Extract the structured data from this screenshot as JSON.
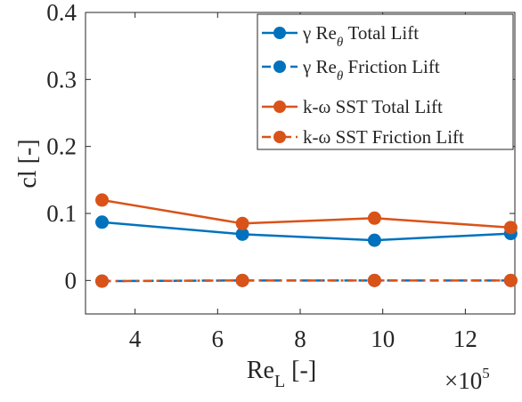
{
  "chart_data": {
    "type": "line",
    "title": "",
    "xlabel": "Re_L [-]",
    "xlabel_main": "Re",
    "xlabel_sub": "L",
    "xlabel_unit": "[-]",
    "ylabel": "cl [-]",
    "x_exponent_base": "×10",
    "x_exponent_power": "5",
    "xlim": [
      2.8,
      13.2
    ],
    "ylim": [
      -0.05,
      0.4
    ],
    "xticks": [
      4,
      6,
      8,
      10,
      12
    ],
    "xtick_labels": [
      "4",
      "6",
      "8",
      "10",
      "12"
    ],
    "yticks": [
      0,
      0.1,
      0.2,
      0.3,
      0.4
    ],
    "ytick_labels": [
      "0",
      "0.1",
      "0.2",
      "0.3",
      "0.4"
    ],
    "grid": false,
    "legend_position": "top-right",
    "x": [
      3.2,
      6.6,
      9.8,
      13.1
    ],
    "series": [
      {
        "name": "γ Re_θ Total Lift",
        "legend_prefix": "γ Re",
        "legend_sub": "θ",
        "legend_suffix": " Total Lift",
        "values": [
          0.087,
          0.069,
          0.06,
          0.07
        ],
        "color": "#0072BD",
        "dash": "solid"
      },
      {
        "name": "γ Re_θ Friction Lift",
        "legend_prefix": "γ Re",
        "legend_sub": "θ",
        "legend_suffix": " Friction Lift",
        "values": [
          -0.001,
          0.0,
          0.0,
          0.0
        ],
        "color": "#0072BD",
        "dash": "dashed"
      },
      {
        "name": "k-ω SST Total Lift",
        "legend_prefix": "k-ω SST Total Lift",
        "legend_sub": "",
        "legend_suffix": "",
        "values": [
          0.12,
          0.085,
          0.093,
          0.079
        ],
        "color": "#D95319",
        "dash": "solid"
      },
      {
        "name": "k-ω SST Friction Lift",
        "legend_prefix": "k-ω SST Friction Lift",
        "legend_sub": "",
        "legend_suffix": "",
        "values": [
          -0.001,
          0.0,
          0.0,
          0.0
        ],
        "color": "#D95319",
        "dash": "dashdot"
      }
    ]
  }
}
